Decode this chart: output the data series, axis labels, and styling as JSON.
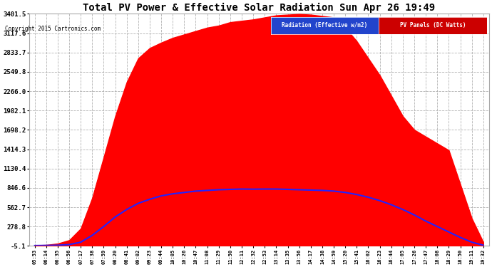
{
  "title": "Total PV Power & Effective Solar Radiation Sun Apr 26 19:49",
  "copyright": "Copyright 2015 Cartronics.com",
  "legend_radiation": "Radiation (Effective w/m2)",
  "legend_pv": "PV Panels (DC Watts)",
  "ymin": -5.1,
  "ymax": 3401.5,
  "yticks": [
    3401.5,
    3117.6,
    2833.7,
    2549.8,
    2266.0,
    1982.1,
    1698.2,
    1414.3,
    1130.4,
    846.6,
    562.7,
    278.8,
    -5.1
  ],
  "bg_color": "#ffffff",
  "plot_bg_color": "#ffffff",
  "grid_color": "#aaaaaa",
  "title_color": "#000000",
  "tick_color": "#000000",
  "red_fill_color": "#ff0000",
  "blue_line_color": "#2222ff",
  "xtick_labels": [
    "05:53",
    "06:14",
    "06:35",
    "06:56",
    "07:17",
    "07:38",
    "07:59",
    "08:20",
    "08:41",
    "09:02",
    "09:23",
    "09:44",
    "10:05",
    "10:26",
    "10:47",
    "11:08",
    "11:29",
    "11:50",
    "12:11",
    "12:32",
    "12:53",
    "13:14",
    "13:35",
    "13:56",
    "14:17",
    "14:38",
    "14:59",
    "15:20",
    "15:41",
    "16:02",
    "16:23",
    "16:44",
    "17:05",
    "17:26",
    "17:47",
    "18:08",
    "18:29",
    "18:50",
    "19:11",
    "19:32"
  ],
  "pv_values": [
    5,
    10,
    30,
    80,
    250,
    700,
    1300,
    1900,
    2400,
    2750,
    2900,
    2980,
    3050,
    3100,
    3150,
    3200,
    3230,
    3280,
    3300,
    3320,
    3350,
    3380,
    3390,
    3400,
    3390,
    3370,
    3350,
    3200,
    3000,
    2750,
    2500,
    2200,
    1900,
    1700,
    1600,
    1500,
    1400,
    900,
    400,
    50
  ],
  "rad_values": [
    0,
    2,
    5,
    15,
    50,
    150,
    280,
    420,
    530,
    620,
    680,
    730,
    760,
    780,
    800,
    810,
    820,
    825,
    830,
    828,
    830,
    830,
    825,
    820,
    815,
    810,
    800,
    780,
    750,
    710,
    660,
    600,
    530,
    450,
    360,
    280,
    200,
    120,
    50,
    5
  ]
}
